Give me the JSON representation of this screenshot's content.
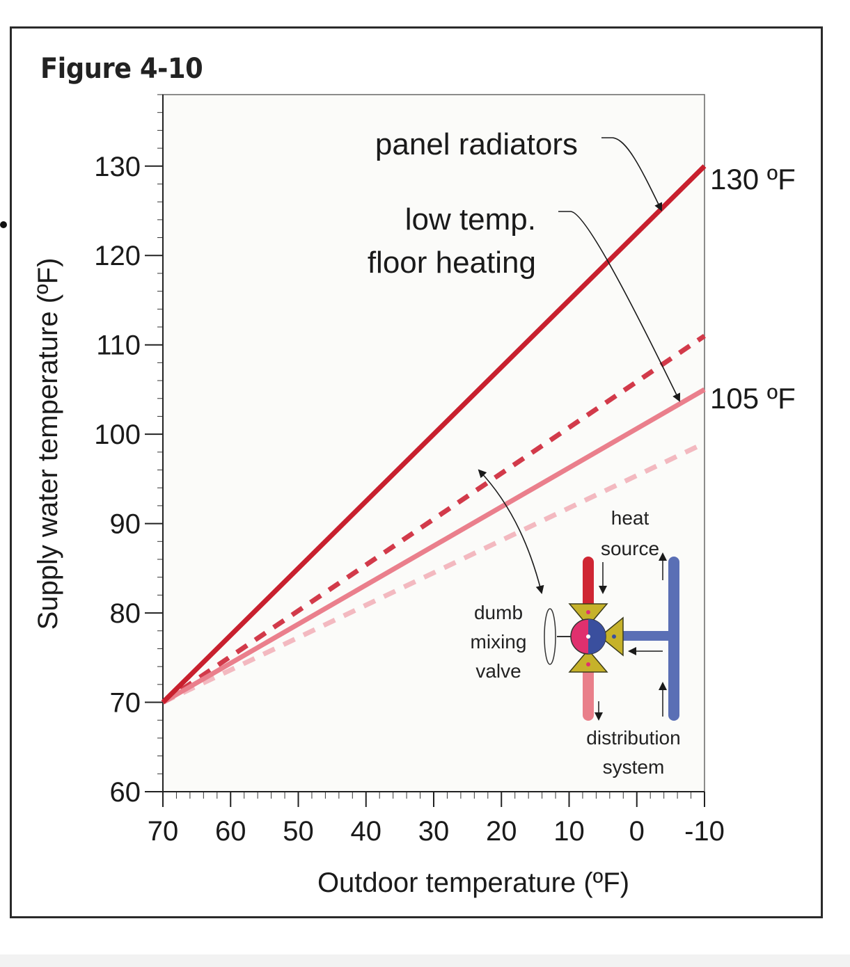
{
  "figure_title": "Figure 4-10",
  "chart_data": {
    "type": "line",
    "xlabel": "Outdoor temperature (ºF)",
    "ylabel": "Supply water temperature (ºF)",
    "xlim": [
      70,
      -10
    ],
    "ylim": [
      60,
      138
    ],
    "x_ticks": [
      70,
      60,
      50,
      40,
      30,
      20,
      10,
      0,
      -10
    ],
    "x_tick_labels": [
      "70",
      "60",
      "50",
      "40",
      "30",
      "20",
      "10",
      "0",
      "-10"
    ],
    "y_ticks": [
      60,
      70,
      80,
      90,
      100,
      110,
      120,
      130
    ],
    "y_tick_labels": [
      "60",
      "70",
      "80",
      "90",
      "100",
      "110",
      "120",
      "130"
    ],
    "grid": false,
    "series": [
      {
        "x": [
          70,
          -10
        ],
        "y": [
          70,
          130
        ],
        "style": "solid",
        "color": "#c8202e"
      },
      {
        "x": [
          70,
          -10
        ],
        "y": [
          70,
          111
        ],
        "style": "dashed",
        "color": "#d23a4a"
      },
      {
        "x": [
          70,
          -10
        ],
        "y": [
          70,
          105
        ],
        "style": "solid",
        "color": "#ea7f8c"
      },
      {
        "x": [
          70,
          -10
        ],
        "y": [
          70,
          99
        ],
        "style": "dashed",
        "color": "#f3b9c0"
      }
    ],
    "annotations": [
      {
        "text": "panel radiators"
      },
      {
        "text_lines": [
          "low temp.",
          "floor heating"
        ]
      },
      {
        "text": "130 ºF"
      },
      {
        "text": "105 ºF"
      }
    ]
  },
  "inset": {
    "label_lines": [
      "dumb",
      "mixing",
      "valve"
    ],
    "heat_source_lines": [
      "heat",
      "source"
    ],
    "distribution_lines": [
      "distribution",
      "system"
    ],
    "colors": {
      "hot": "#cf2633",
      "cool": "#e97f8a",
      "return": "#5a6fb5",
      "valve_body": "#c6b22a"
    }
  }
}
